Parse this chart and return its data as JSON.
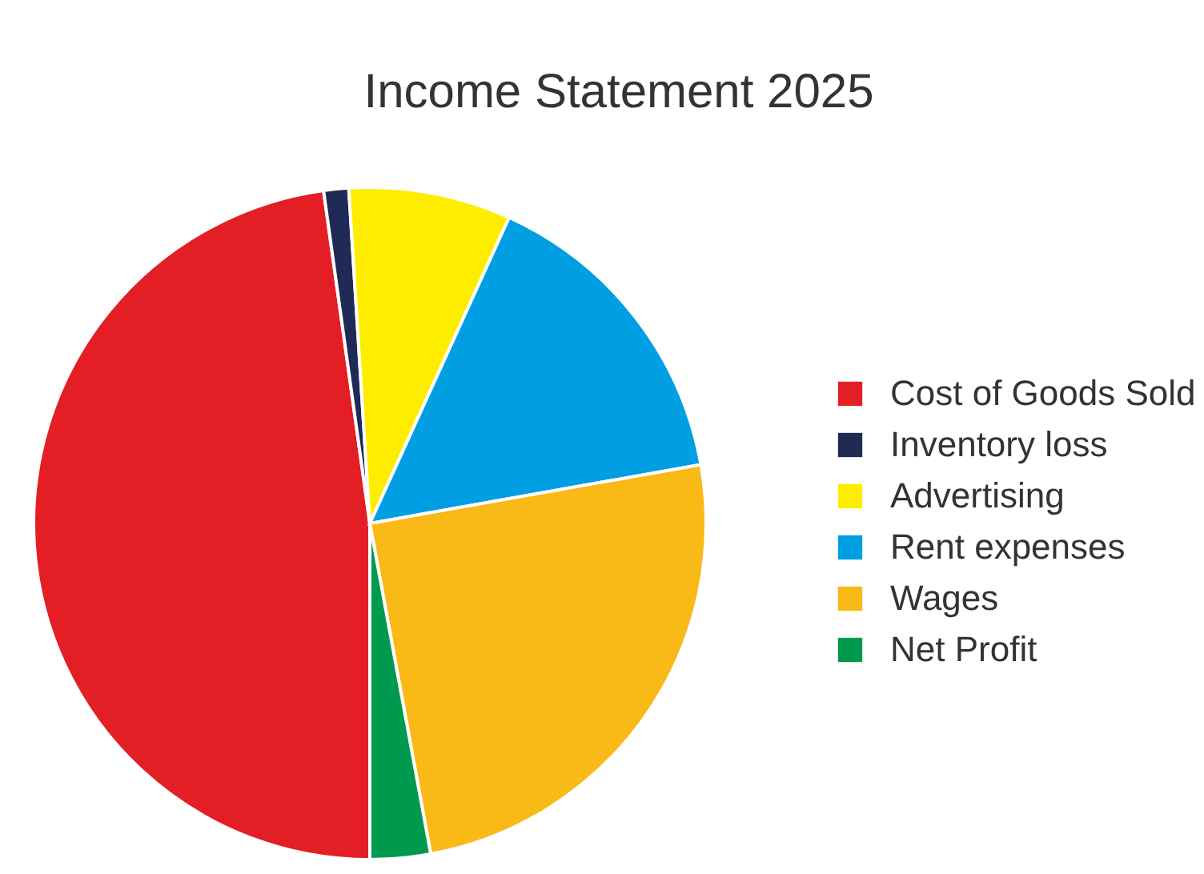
{
  "chart_data": {
    "type": "pie",
    "title": "Income Statement 2025",
    "categories": [
      "Cost of Goods Sold",
      "Inventory loss",
      "Advertising",
      "Rent expenses",
      "Wages",
      "Net Profit"
    ],
    "values": [
      47.8,
      1.2,
      7.8,
      15.4,
      24.9,
      2.9
    ],
    "colors": [
      "#e31e24",
      "#1f2a55",
      "#ffed00",
      "#009fe3",
      "#f9b917",
      "#009a4e"
    ],
    "legend": "right"
  }
}
